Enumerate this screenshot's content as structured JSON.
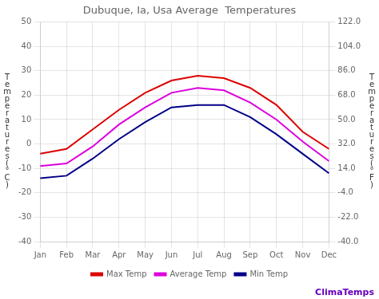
{
  "chart_data": {
    "type": "line",
    "title": "Dubuque, Ia, Usa Average  Temperatures",
    "categories": [
      "Jan",
      "Feb",
      "Mar",
      "Apr",
      "May",
      "Jun",
      "Jul",
      "Aug",
      "Sep",
      "Oct",
      "Nov",
      "Dec"
    ],
    "series": [
      {
        "name": "Max Temp",
        "color": "#dd0000",
        "values": [
          -4,
          -2,
          6,
          14,
          21,
          26,
          28,
          27,
          23,
          16,
          5,
          -2
        ]
      },
      {
        "name": "Average Temp",
        "color": "#dd00dd",
        "values": [
          -9,
          -8,
          -1,
          8,
          15,
          21,
          23,
          22,
          17,
          10,
          1,
          -7
        ]
      },
      {
        "name": "Min Temp",
        "color": "#000088",
        "values": [
          -14,
          -13,
          -6,
          2,
          9,
          15,
          16,
          16,
          11,
          4,
          -4,
          -12
        ]
      }
    ],
    "ylabel": "Temperatures(°C)",
    "y2label": "Temperatures(°F)",
    "ylim": [
      -40,
      50
    ],
    "yticks": [
      -40,
      -30,
      -20,
      -10,
      0,
      10,
      20,
      30,
      40,
      50
    ],
    "y2lim": [
      -40.0,
      122.0
    ],
    "y2ticks": [
      {
        "value": -40.0,
        "label": "-40.0"
      },
      {
        "value": -22.0,
        "label": "-22.0"
      },
      {
        "value": -4.0,
        "label": "-4.0"
      },
      {
        "value": 14.0,
        "label": "14.0"
      },
      {
        "value": 32.0,
        "label": "32.0"
      },
      {
        "value": 50.0,
        "label": "50.0"
      },
      {
        "value": 68.0,
        "label": "68.0"
      },
      {
        "value": 86.0,
        "label": "86.0"
      },
      {
        "value": 104.0,
        "label": "104.0"
      },
      {
        "value": 122.0,
        "label": "122.0"
      }
    ],
    "grid": true,
    "legend": "bottom",
    "annotations": [
      {
        "text": "ClimaTemps",
        "color": "#6600bb"
      }
    ]
  }
}
